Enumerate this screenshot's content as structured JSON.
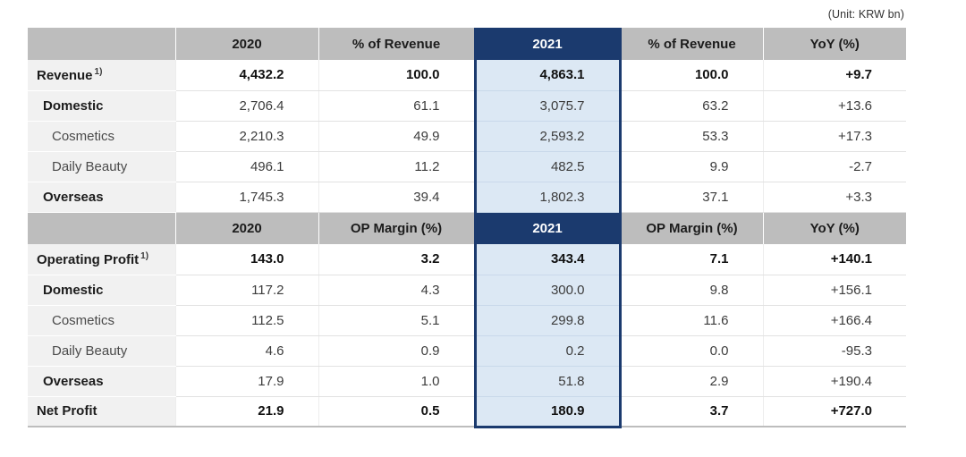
{
  "unit_label": "(Unit: KRW bn)",
  "colors": {
    "accent_navy": "#1b3a6e",
    "highlight_blue": "#dce8f4",
    "header_gray": "#bdbdbd",
    "label_gray": "#f1f1f1"
  },
  "table": {
    "headers": {
      "revenue_section": {
        "col_2020": "2020",
        "col_share_2020": "% of Revenue",
        "col_2021": "2021",
        "col_share_2021": "% of Revenue",
        "col_yoy": "YoY (%)"
      },
      "profit_section": {
        "col_2020": "2020",
        "col_margin_2020": "OP Margin (%)",
        "col_2021": "2021",
        "col_margin_2021": "OP Margin (%)",
        "col_yoy": "YoY (%)"
      }
    },
    "rows": [
      {
        "label": "Revenue",
        "footnote": "1)",
        "v2020": "4,432.2",
        "p2020": "100.0",
        "v2021": "4,863.1",
        "p2021": "100.0",
        "yoy": "+9.7"
      },
      {
        "label": "Domestic",
        "v2020": "2,706.4",
        "p2020": "61.1",
        "v2021": "3,075.7",
        "p2021": "63.2",
        "yoy": "+13.6"
      },
      {
        "label": "Cosmetics",
        "v2020": "2,210.3",
        "p2020": "49.9",
        "v2021": "2,593.2",
        "p2021": "53.3",
        "yoy": "+17.3"
      },
      {
        "label": "Daily Beauty",
        "v2020": "496.1",
        "p2020": "11.2",
        "v2021": "482.5",
        "p2021": "9.9",
        "yoy": "-2.7"
      },
      {
        "label": "Overseas",
        "v2020": "1,745.3",
        "p2020": "39.4",
        "v2021": "1,802.3",
        "p2021": "37.1",
        "yoy": "+3.3"
      },
      {
        "label": "Operating Profit",
        "footnote": "1)",
        "v2020": "143.0",
        "p2020": "3.2",
        "v2021": "343.4",
        "p2021": "7.1",
        "yoy": "+140.1"
      },
      {
        "label": "Domestic",
        "v2020": "117.2",
        "p2020": "4.3",
        "v2021": "300.0",
        "p2021": "9.8",
        "yoy": "+156.1"
      },
      {
        "label": "Cosmetics",
        "v2020": "112.5",
        "p2020": "5.1",
        "v2021": "299.8",
        "p2021": "11.6",
        "yoy": "+166.4"
      },
      {
        "label": "Daily Beauty",
        "v2020": "4.6",
        "p2020": "0.9",
        "v2021": "0.2",
        "p2021": "0.0",
        "yoy": "-95.3"
      },
      {
        "label": "Overseas",
        "v2020": "17.9",
        "p2020": "1.0",
        "v2021": "51.8",
        "p2021": "2.9",
        "yoy": "+190.4"
      },
      {
        "label": "Net Profit",
        "v2020": "21.9",
        "p2020": "0.5",
        "v2021": "180.9",
        "p2021": "3.7",
        "yoy": "+727.0"
      }
    ]
  }
}
